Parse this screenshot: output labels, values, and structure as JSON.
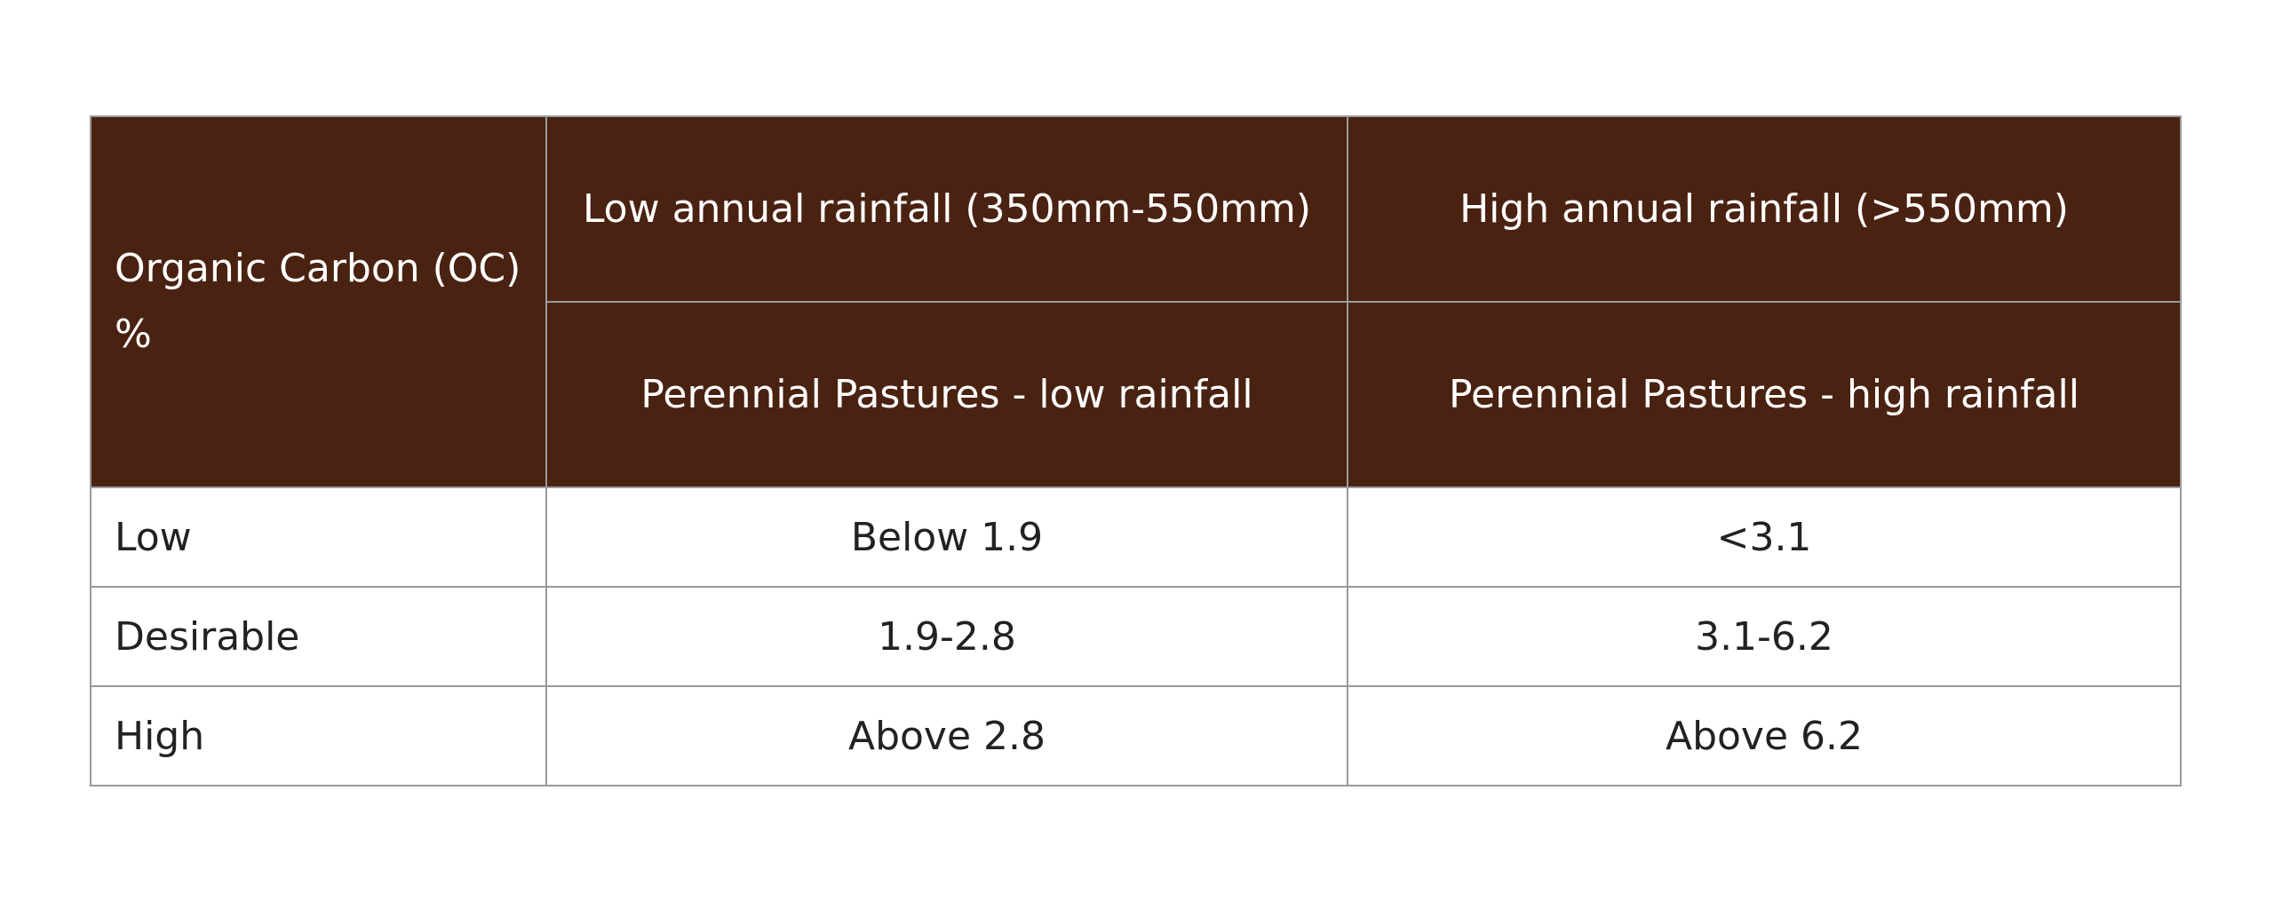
{
  "table": {
    "corner_header": "Organic Carbon (OC) %",
    "rainfall_headers": [
      "Low annual rainfall (350mm-550mm)",
      "High annual rainfall (>550mm)"
    ],
    "pasture_headers": [
      "Perennial Pastures - low rainfall",
      "Perennial Pastures - high rainfall"
    ],
    "rows": [
      {
        "level": "Low",
        "low_rainfall": "Below 1.9",
        "high_rainfall": "<3.1"
      },
      {
        "level": "Desirable",
        "low_rainfall": "1.9-2.8",
        "high_rainfall": "3.1-6.2"
      },
      {
        "level": "High",
        "low_rainfall": "Above 2.8",
        "high_rainfall": "Above 6.2"
      }
    ],
    "colors": {
      "header_background": "#4a2211",
      "header_text": "#ffffff",
      "border": "#9a9a9a"
    }
  }
}
